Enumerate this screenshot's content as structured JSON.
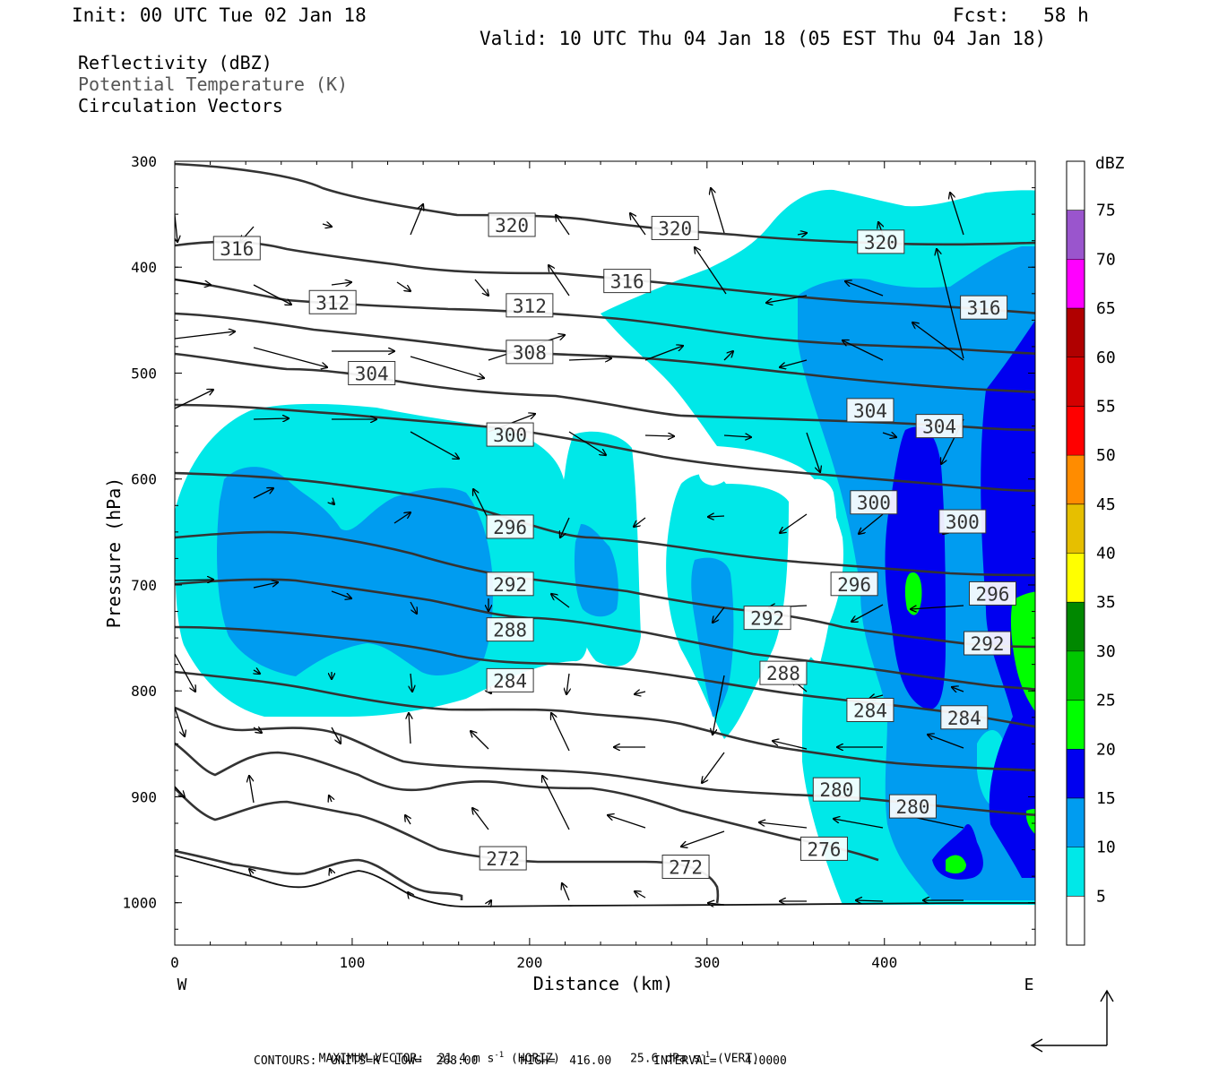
{
  "header": {
    "init": "Init: 00 UTC Tue 02 Jan 18",
    "fcst": "Fcst:   58 h",
    "valid": "Valid: 10 UTC Thu 04 Jan 18 (05 EST Thu 04 Jan 18)",
    "field1": "Reflectivity (dBZ)",
    "field2": "Potential Temperature (K)",
    "field3": "Circulation Vectors"
  },
  "footer": {
    "max_vector_label": "MAXIMUM VECTOR:",
    "max_horiz_value": "21.4 m s",
    "horiz_tag": "(HORIZ)",
    "max_vert_value": "25.6 dPa s",
    "vert_tag": "(VERT)",
    "exp": "-1",
    "contours": "CONTOURS:  UNITS=K  LOW=  268.00      HIGH=  416.00      INTERVAL=    4.0000"
  },
  "chart_data": {
    "type": "cross-section contour",
    "xlabel": "Distance (km)",
    "ylabel": "Pressure (hPa)",
    "xlim": [
      0,
      485
    ],
    "ylim": [
      1040,
      300
    ],
    "x_ticks": [
      0,
      100,
      200,
      300,
      400
    ],
    "y_ticks": [
      300,
      400,
      500,
      600,
      700,
      800,
      900,
      1000
    ],
    "x_end_labels": {
      "left": "W",
      "right": "E"
    },
    "colorbar": {
      "title": "dBZ",
      "levels": [
        5,
        10,
        15,
        20,
        25,
        30,
        35,
        40,
        45,
        50,
        55,
        60,
        65,
        70,
        75
      ],
      "colors": [
        "#ffffff",
        "#00e8e8",
        "#009cf0",
        "#0000f0",
        "#00ff00",
        "#00c800",
        "#008800",
        "#ffff00",
        "#e6bf00",
        "#ff8c00",
        "#ff0000",
        "#d40000",
        "#b00000",
        "#ff00ff",
        "#9a55cd",
        "#ffffff"
      ]
    },
    "theta_labels": [
      {
        "v": "316",
        "x": 35,
        "p": 382
      },
      {
        "v": "320",
        "x": 190,
        "p": 360
      },
      {
        "v": "320",
        "x": 282,
        "p": 363
      },
      {
        "v": "320",
        "x": 398,
        "p": 376
      },
      {
        "v": "312",
        "x": 89,
        "p": 433
      },
      {
        "v": "312",
        "x": 200,
        "p": 436
      },
      {
        "v": "316",
        "x": 255,
        "p": 413
      },
      {
        "v": "316",
        "x": 456,
        "p": 438
      },
      {
        "v": "308",
        "x": 200,
        "p": 480
      },
      {
        "v": "304",
        "x": 111,
        "p": 500
      },
      {
        "v": "300",
        "x": 189,
        "p": 558
      },
      {
        "v": "304",
        "x": 392,
        "p": 535
      },
      {
        "v": "304",
        "x": 431,
        "p": 550
      },
      {
        "v": "296",
        "x": 189,
        "p": 645
      },
      {
        "v": "300",
        "x": 394,
        "p": 622
      },
      {
        "v": "300",
        "x": 444,
        "p": 640
      },
      {
        "v": "292",
        "x": 189,
        "p": 699
      },
      {
        "v": "296",
        "x": 383,
        "p": 699
      },
      {
        "v": "296",
        "x": 461,
        "p": 708
      },
      {
        "v": "288",
        "x": 189,
        "p": 742
      },
      {
        "v": "292",
        "x": 334,
        "p": 731
      },
      {
        "v": "292",
        "x": 458,
        "p": 755
      },
      {
        "v": "284",
        "x": 189,
        "p": 790
      },
      {
        "v": "288",
        "x": 343,
        "p": 783
      },
      {
        "v": "284",
        "x": 392,
        "p": 818
      },
      {
        "v": "284",
        "x": 445,
        "p": 825
      },
      {
        "v": "280",
        "x": 373,
        "p": 893
      },
      {
        "v": "280",
        "x": 416,
        "p": 909
      },
      {
        "v": "272",
        "x": 185,
        "p": 958
      },
      {
        "v": "272",
        "x": 288,
        "p": 966
      },
      {
        "v": "276",
        "x": 366,
        "p": 949
      }
    ],
    "max_vector": {
      "horiz_m_s": 21.4,
      "vert_dPa_s": 25.6
    },
    "contours": {
      "units": "K",
      "low": 268.0,
      "high": 416.0,
      "interval": 4.0
    }
  }
}
